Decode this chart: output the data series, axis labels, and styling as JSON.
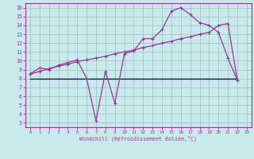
{
  "xlabel": "Windchill (Refroidissement éolien,°C)",
  "bg_color": "#c8eaea",
  "line_color": "#993399",
  "dark_line_color": "#330066",
  "xlim": [
    -0.5,
    23.5
  ],
  "ylim": [
    2.5,
    16.5
  ],
  "yticks": [
    3,
    4,
    5,
    6,
    7,
    8,
    9,
    10,
    11,
    12,
    13,
    14,
    15,
    16
  ],
  "xticks": [
    0,
    1,
    2,
    3,
    4,
    5,
    6,
    7,
    8,
    9,
    10,
    11,
    12,
    13,
    14,
    15,
    16,
    17,
    18,
    19,
    20,
    21,
    22,
    23
  ],
  "series1_x": [
    0,
    1,
    2,
    3,
    4,
    5,
    6,
    7,
    8,
    9,
    10,
    11,
    12,
    13,
    14,
    15,
    16,
    17,
    18,
    19,
    20,
    21,
    22
  ],
  "series1_y": [
    8.5,
    9.2,
    9.0,
    9.5,
    9.8,
    10.1,
    8.0,
    3.2,
    8.8,
    5.2,
    10.8,
    11.1,
    12.5,
    12.5,
    13.5,
    15.6,
    16.0,
    15.2,
    14.3,
    14.0,
    13.2,
    10.3,
    7.8
  ],
  "series2_x": [
    0,
    1,
    2,
    3,
    4,
    5,
    6,
    7,
    8,
    9,
    10,
    11,
    12,
    13,
    14,
    15,
    16,
    17,
    18,
    19,
    20,
    21,
    22
  ],
  "series2_y": [
    8.5,
    8.8,
    9.1,
    9.4,
    9.6,
    9.9,
    10.1,
    10.3,
    10.5,
    10.8,
    11.0,
    11.2,
    11.5,
    11.7,
    12.0,
    12.2,
    12.5,
    12.7,
    13.0,
    13.2,
    14.0,
    14.2,
    7.8
  ],
  "series3_x": [
    0,
    22
  ],
  "series3_y": [
    8.0,
    8.0
  ],
  "grid_color": "#9bbcbc",
  "grid_linewidth": 0.5,
  "line_linewidth": 0.9,
  "marker_size": 3.0
}
